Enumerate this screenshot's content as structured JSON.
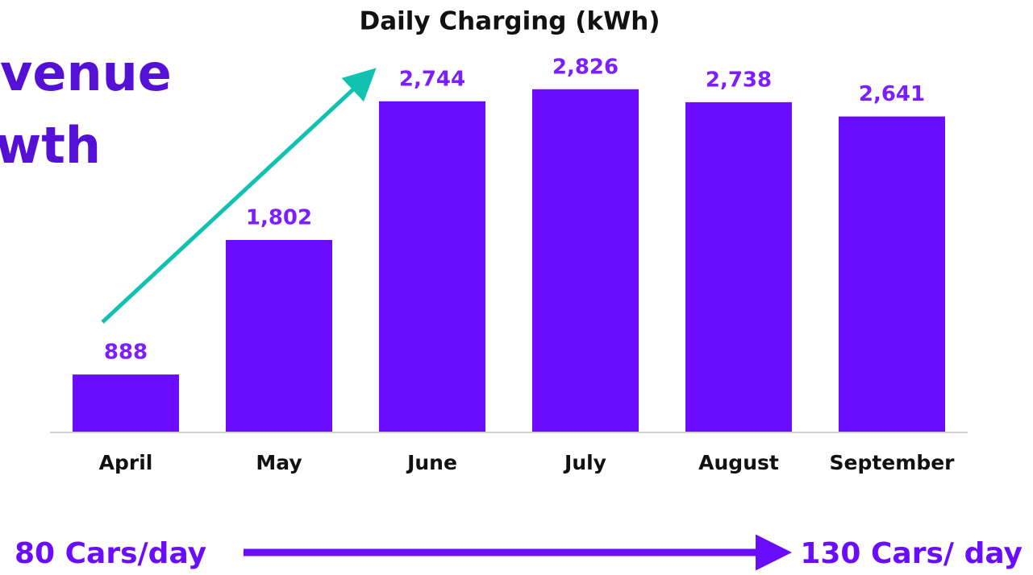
{
  "chart_data": {
    "type": "bar",
    "title": "Daily Charging (kWh)",
    "heading_lines": [
      "venue",
      "wth"
    ],
    "categories": [
      "April",
      "May",
      "June",
      "July",
      "August",
      "September"
    ],
    "values": [
      888,
      1802,
      2744,
      2826,
      2738,
      2641
    ],
    "value_labels": [
      "888",
      "1,802",
      "2,744",
      "2,826",
      "2,738",
      "2,641"
    ],
    "color": "#6a0dff",
    "ylim": [
      500,
      3000
    ],
    "annotations": [
      "80 Cars/day",
      "130 Cars/ day"
    ]
  }
}
